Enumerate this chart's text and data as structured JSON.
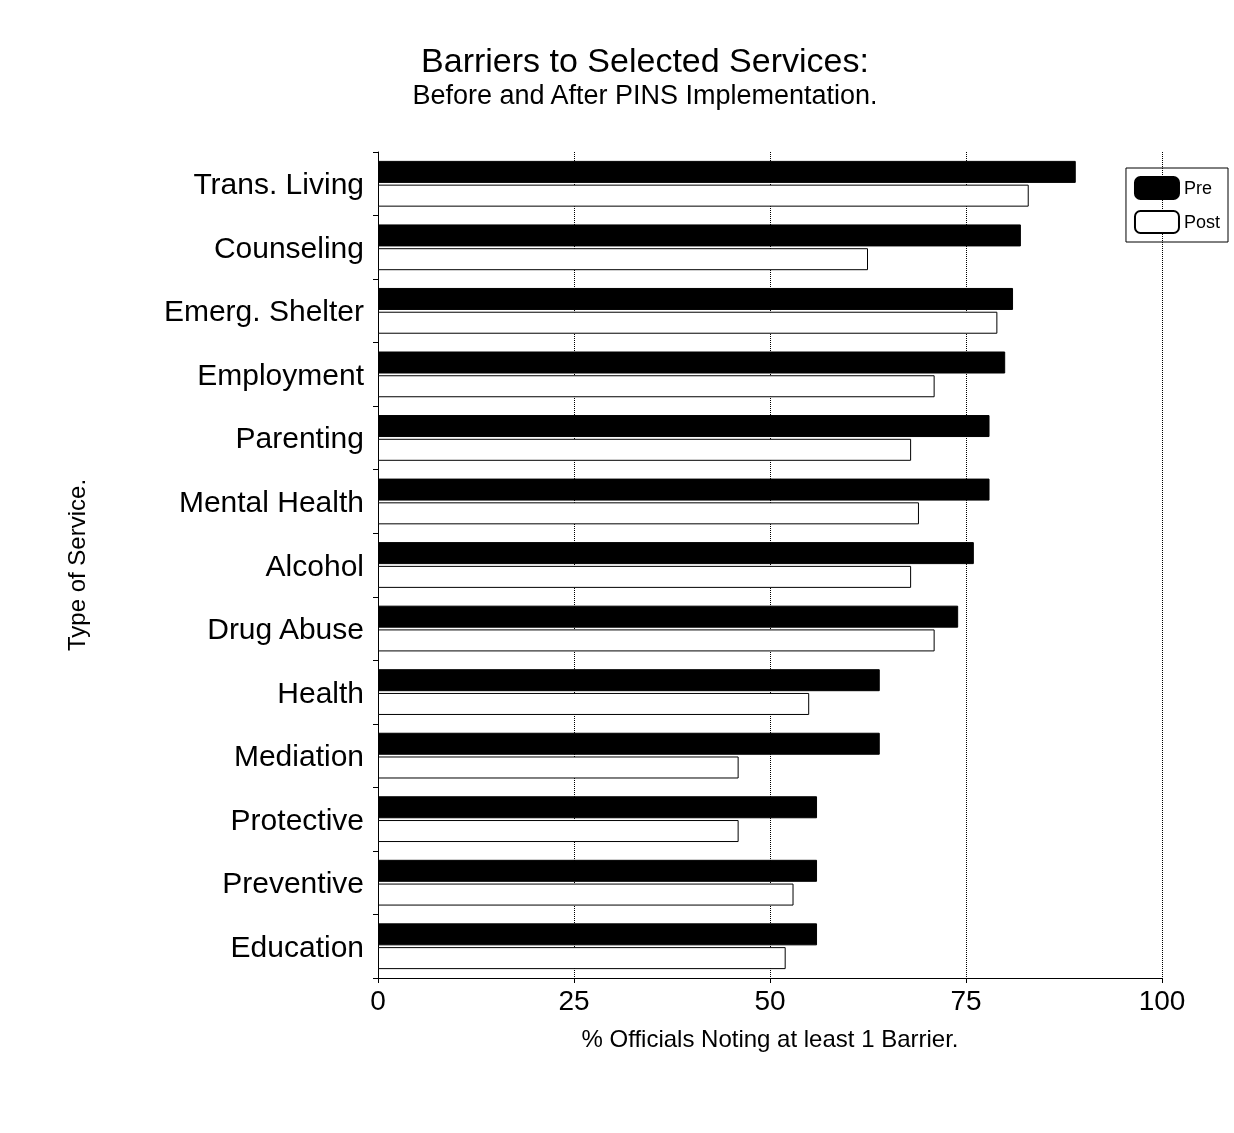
{
  "chart_data": {
    "type": "bar",
    "orientation": "horizontal",
    "title": "Barriers to Selected Services:",
    "subtitle": "Before and After PINS Implementation.",
    "xlabel": "% Officials Noting at least 1 Barrier.",
    "ylabel": "Type of Service.",
    "categories": [
      "Trans. Living",
      "Counseling",
      "Emerg. Shelter",
      "Employment",
      "Parenting",
      "Mental Health",
      "Alcohol",
      "Drug Abuse",
      "Health",
      "Mediation",
      "Protective",
      "Preventive",
      "Education"
    ],
    "series": [
      {
        "name": "Pre",
        "color": "#000000",
        "values": [
          89,
          82,
          81,
          80,
          78,
          78,
          76,
          74,
          64,
          64,
          56,
          56,
          56
        ]
      },
      {
        "name": "Post",
        "color": "#ffffff",
        "values": [
          83,
          62.5,
          79,
          71,
          68,
          69,
          68,
          71,
          55,
          46,
          46,
          53,
          52
        ]
      }
    ],
    "xlim": [
      0,
      100
    ],
    "xticks": [
      0,
      25,
      50,
      75,
      100
    ],
    "grid": "x",
    "legend": "top right"
  }
}
